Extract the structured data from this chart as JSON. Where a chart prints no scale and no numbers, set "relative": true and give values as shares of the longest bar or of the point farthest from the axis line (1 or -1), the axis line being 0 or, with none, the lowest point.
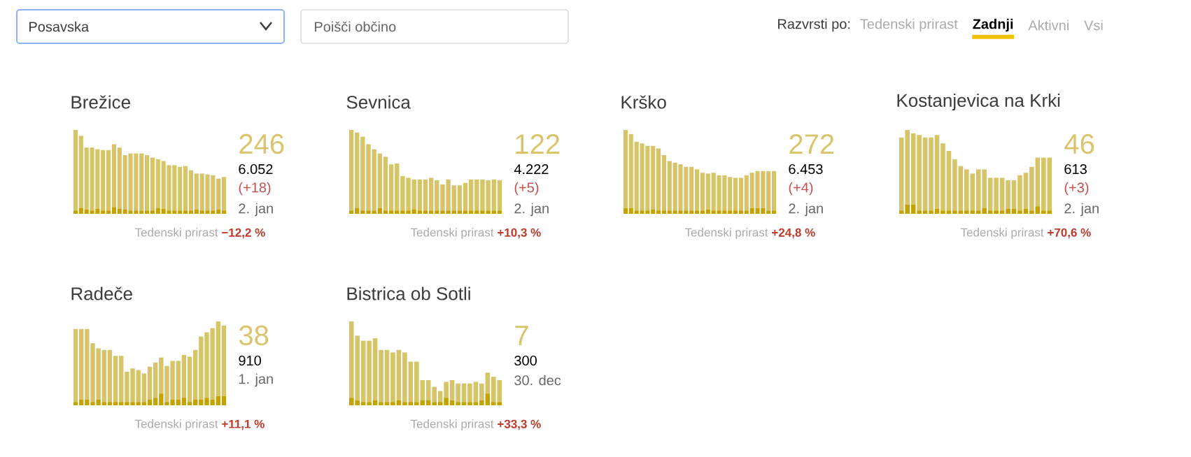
{
  "chart_data": [
    {
      "type": "other",
      "annotations": [
        "Posavska",
        "Poišči občino",
        "Razvrsti po:",
        "Tedenski prirast",
        "Zadnji",
        "Aktivni",
        "Vsi"
      ]
    },
    {
      "type": "bar",
      "title": "Brežice",
      "relative": true,
      "stacked": true,
      "categories": [
        null,
        null,
        null,
        null,
        null,
        null,
        null,
        null,
        null,
        null,
        null,
        null,
        null,
        null,
        null,
        null,
        null,
        null,
        null,
        null,
        null,
        null,
        null,
        null,
        null,
        null,
        null,
        null
      ],
      "series": [
        {
          "color": "#c2a300",
          "values": [
            0.04,
            0.07,
            0.05,
            0.04,
            0.06,
            0.04,
            0.04,
            0.08,
            0.06,
            0.05,
            0.04,
            0.04,
            0.04,
            0.04,
            0.04,
            0.07,
            0.06,
            0.04,
            0.04,
            0.04,
            0.04,
            0.04,
            0.05,
            0.04,
            0.04,
            0.04,
            0.05,
            0.04
          ]
        },
        {
          "color": "#d6c568",
          "values": [
            0.96,
            0.86,
            0.74,
            0.75,
            0.71,
            0.72,
            0.72,
            0.75,
            0.73,
            0.65,
            0.68,
            0.68,
            0.68,
            0.66,
            0.63,
            0.58,
            0.57,
            0.54,
            0.54,
            0.52,
            0.53,
            0.48,
            0.43,
            0.44,
            0.43,
            0.42,
            0.37,
            0.4
          ]
        }
      ],
      "annotations": [
        "246",
        "6.052",
        "(+18)",
        "2. jan",
        "Tedenski prirast",
        "−12,2 %"
      ]
    },
    {
      "type": "bar",
      "title": "Sevnica",
      "relative": true,
      "stacked": true,
      "categories": [
        null,
        null,
        null,
        null,
        null,
        null,
        null,
        null,
        null,
        null,
        null,
        null,
        null,
        null,
        null,
        null,
        null,
        null,
        null,
        null,
        null,
        null,
        null,
        null,
        null,
        null,
        null
      ],
      "series": [
        {
          "color": "#c2a300",
          "values": [
            0.04,
            0.07,
            0.04,
            0.04,
            0.04,
            0.07,
            0.04,
            0.04,
            0.04,
            0.04,
            0.04,
            0.05,
            0.04,
            0.04,
            0.04,
            0.04,
            0.04,
            0.04,
            0.04,
            0.04,
            0.04,
            0.04,
            0.04,
            0.04,
            0.04,
            0.04,
            0.04
          ]
        },
        {
          "color": "#d6c568",
          "values": [
            0.96,
            0.9,
            0.88,
            0.79,
            0.73,
            0.65,
            0.64,
            0.55,
            0.56,
            0.41,
            0.39,
            0.36,
            0.37,
            0.37,
            0.39,
            0.36,
            0.31,
            0.37,
            0.3,
            0.3,
            0.33,
            0.37,
            0.37,
            0.37,
            0.36,
            0.37,
            0.36
          ]
        }
      ],
      "annotations": [
        "122",
        "4.222",
        "(+5)",
        "2. jan",
        "Tedenski prirast",
        "+10,3 %"
      ]
    },
    {
      "type": "bar",
      "title": "Krško",
      "relative": true,
      "stacked": true,
      "categories": [
        null,
        null,
        null,
        null,
        null,
        null,
        null,
        null,
        null,
        null,
        null,
        null,
        null,
        null,
        null,
        null,
        null,
        null,
        null,
        null,
        null,
        null,
        null,
        null,
        null,
        null,
        null,
        null
      ],
      "series": [
        {
          "color": "#c2a300",
          "values": [
            0.07,
            0.07,
            0.04,
            0.04,
            0.04,
            0.05,
            0.04,
            0.04,
            0.04,
            0.04,
            0.04,
            0.04,
            0.04,
            0.04,
            0.04,
            0.05,
            0.04,
            0.04,
            0.04,
            0.04,
            0.04,
            0.04,
            0.04,
            0.07,
            0.07,
            0.07,
            0.04,
            0.04
          ]
        },
        {
          "color": "#d6c568",
          "values": [
            0.93,
            0.88,
            0.82,
            0.8,
            0.77,
            0.76,
            0.74,
            0.66,
            0.59,
            0.57,
            0.55,
            0.52,
            0.52,
            0.49,
            0.45,
            0.43,
            0.45,
            0.42,
            0.42,
            0.4,
            0.39,
            0.39,
            0.42,
            0.42,
            0.44,
            0.44,
            0.47,
            0.47
          ]
        }
      ],
      "annotations": [
        "272",
        "6.453",
        "(+4)",
        "2. jan",
        "Tedenski prirast",
        "+24,8 %"
      ]
    },
    {
      "type": "bar",
      "title": "Kostanjevica na Krki",
      "relative": true,
      "stacked": true,
      "categories": [
        null,
        null,
        null,
        null,
        null,
        null,
        null,
        null,
        null,
        null,
        null,
        null,
        null,
        null,
        null,
        null,
        null,
        null,
        null,
        null,
        null,
        null,
        null,
        null,
        null,
        null
      ],
      "series": [
        {
          "color": "#c2a300",
          "values": [
            0.04,
            0.11,
            0.11,
            0.04,
            0.04,
            0.04,
            0.06,
            0.04,
            0.04,
            0.04,
            0.04,
            0.04,
            0.04,
            0.04,
            0.07,
            0.04,
            0.04,
            0.04,
            0.06,
            0.06,
            0.04,
            0.06,
            0.04,
            0.09,
            0.04,
            0.04
          ]
        },
        {
          "color": "#d6c568",
          "values": [
            0.87,
            0.89,
            0.85,
            0.9,
            0.87,
            0.87,
            0.88,
            0.8,
            0.71,
            0.61,
            0.53,
            0.49,
            0.44,
            0.49,
            0.46,
            0.39,
            0.39,
            0.39,
            0.34,
            0.34,
            0.42,
            0.43,
            0.52,
            0.58,
            0.63,
            0.63
          ]
        }
      ],
      "annotations": [
        "46",
        "613",
        "(+3)",
        "2. jan",
        "Tedenski prirast",
        "+70,6 %"
      ]
    },
    {
      "type": "bar",
      "title": "Radeče",
      "relative": true,
      "stacked": true,
      "categories": [
        null,
        null,
        null,
        null,
        null,
        null,
        null,
        null,
        null,
        null,
        null,
        null,
        null,
        null,
        null,
        null,
        null,
        null,
        null,
        null,
        null,
        null,
        null,
        null,
        null,
        null,
        null
      ],
      "series": [
        {
          "color": "#c2a300",
          "values": [
            0.04,
            0.07,
            0.07,
            0.04,
            0.07,
            0.04,
            0.04,
            0.04,
            0.04,
            0.04,
            0.04,
            0.04,
            0.04,
            0.07,
            0.09,
            0.14,
            0.04,
            0.07,
            0.07,
            0.09,
            0.04,
            0.07,
            0.07,
            0.09,
            0.07,
            0.11,
            0.11
          ]
        },
        {
          "color": "#d6c568",
          "values": [
            0.87,
            0.84,
            0.84,
            0.7,
            0.61,
            0.62,
            0.62,
            0.55,
            0.55,
            0.36,
            0.4,
            0.38,
            0.34,
            0.39,
            0.42,
            0.43,
            0.43,
            0.46,
            0.46,
            0.51,
            0.54,
            0.59,
            0.75,
            0.78,
            0.85,
            0.89,
            0.84
          ]
        }
      ],
      "annotations": [
        "38",
        "910",
        "1. jan",
        "Tedenski prirast",
        "+11,1 %"
      ]
    },
    {
      "type": "bar",
      "title": "Bistrica ob Sotli",
      "relative": true,
      "stacked": true,
      "categories": [
        null,
        null,
        null,
        null,
        null,
        null,
        null,
        null,
        null,
        null,
        null,
        null,
        null,
        null,
        null,
        null,
        null,
        null,
        null,
        null,
        null,
        null,
        null,
        null,
        null,
        null
      ],
      "series": [
        {
          "color": "#c2a300",
          "values": [
            0.09,
            0.06,
            0.04,
            0.04,
            0.06,
            0.04,
            0.04,
            0.04,
            0.06,
            0.04,
            0.04,
            0.04,
            0.06,
            0.06,
            0.04,
            0.04,
            0.09,
            0.06,
            0.04,
            0.04,
            0.04,
            0.04,
            0.06,
            0.14,
            0.04,
            0.04
          ]
        },
        {
          "color": "#d6c568",
          "values": [
            0.91,
            0.77,
            0.73,
            0.73,
            0.74,
            0.62,
            0.62,
            0.59,
            0.6,
            0.59,
            0.48,
            0.48,
            0.24,
            0.24,
            0.18,
            0.13,
            0.19,
            0.24,
            0.22,
            0.22,
            0.22,
            0.24,
            0.2,
            0.25,
            0.3,
            0.26
          ]
        }
      ],
      "annotations": [
        "7",
        "300",
        "30. dec",
        "Tedenski prirast",
        "+33,3 %"
      ]
    }
  ]
}
